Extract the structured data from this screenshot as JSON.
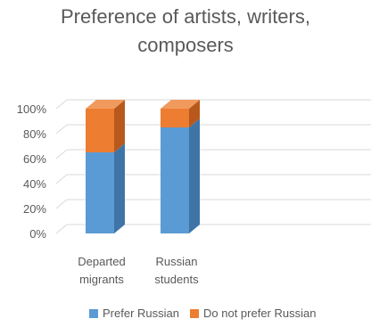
{
  "chart_data": {
    "type": "bar",
    "stacked": true,
    "three_d": true,
    "percent_stacked": true,
    "title_lines": [
      "Preference of artists, writers,",
      "composers"
    ],
    "categories": [
      {
        "lines": [
          "Departed",
          "migrants"
        ]
      },
      {
        "lines": [
          "Russian",
          "students"
        ]
      }
    ],
    "y_ticks": [
      "0%",
      "20%",
      "40%",
      "60%",
      "80%",
      "100%"
    ],
    "ylim": [
      0,
      100
    ],
    "grid": true,
    "legend_position": "bottom",
    "series": [
      {
        "name": "Prefer Russian",
        "color": "#5B9BD5",
        "side_color": "#3E75A6",
        "top_color": "#7FB1DE",
        "values": [
          65,
          85
        ]
      },
      {
        "name": "Do not prefer Russian",
        "color": "#ED7D31",
        "side_color": "#B8581C",
        "top_color": "#F19A5E",
        "values": [
          35,
          15
        ]
      }
    ]
  }
}
